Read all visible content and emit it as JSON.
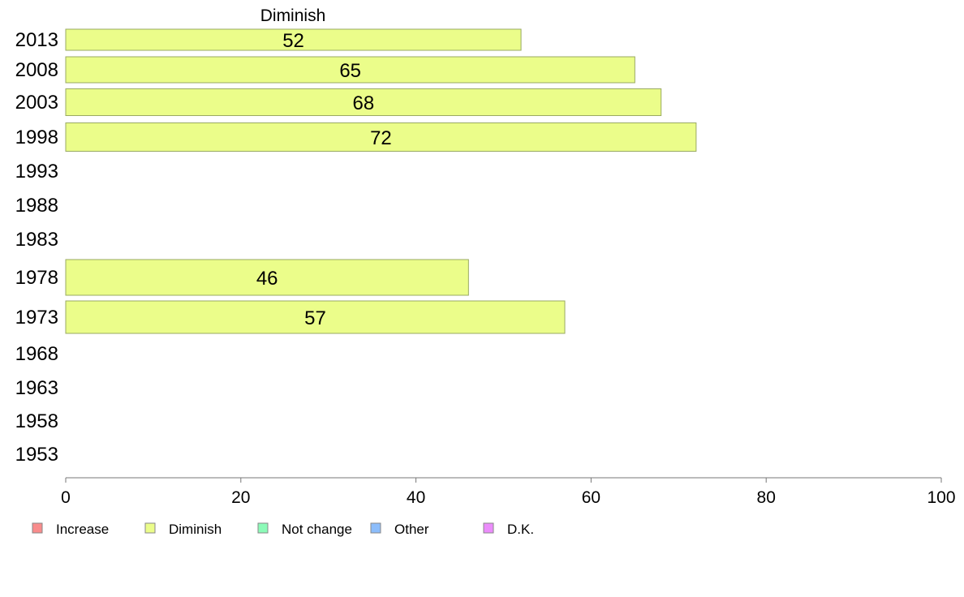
{
  "chart_data": {
    "type": "bar",
    "orientation": "horizontal",
    "series_title": "Diminish",
    "categories": [
      "2013",
      "2008",
      "2003",
      "1998",
      "1993",
      "1988",
      "1983",
      "1978",
      "1973",
      "1968",
      "1963",
      "1958",
      "1953"
    ],
    "series": [
      {
        "name": "Diminish",
        "color": "#ebfd8a",
        "values": [
          52,
          65,
          68,
          72,
          null,
          null,
          null,
          46,
          57,
          null,
          null,
          null,
          null
        ]
      }
    ],
    "xlim": [
      0,
      100
    ],
    "xticks": [
      0,
      20,
      40,
      60,
      80,
      100
    ],
    "grid": false,
    "legend_position": "bottom",
    "legend": [
      {
        "label": "Increase",
        "color": "#f98c8c"
      },
      {
        "label": "Diminish",
        "color": "#ebfd8a"
      },
      {
        "label": "Not change",
        "color": "#8cfbb8"
      },
      {
        "label": "Other",
        "color": "#8cbdfb"
      },
      {
        "label": "D.K.",
        "color": "#eb8cfb"
      }
    ]
  }
}
